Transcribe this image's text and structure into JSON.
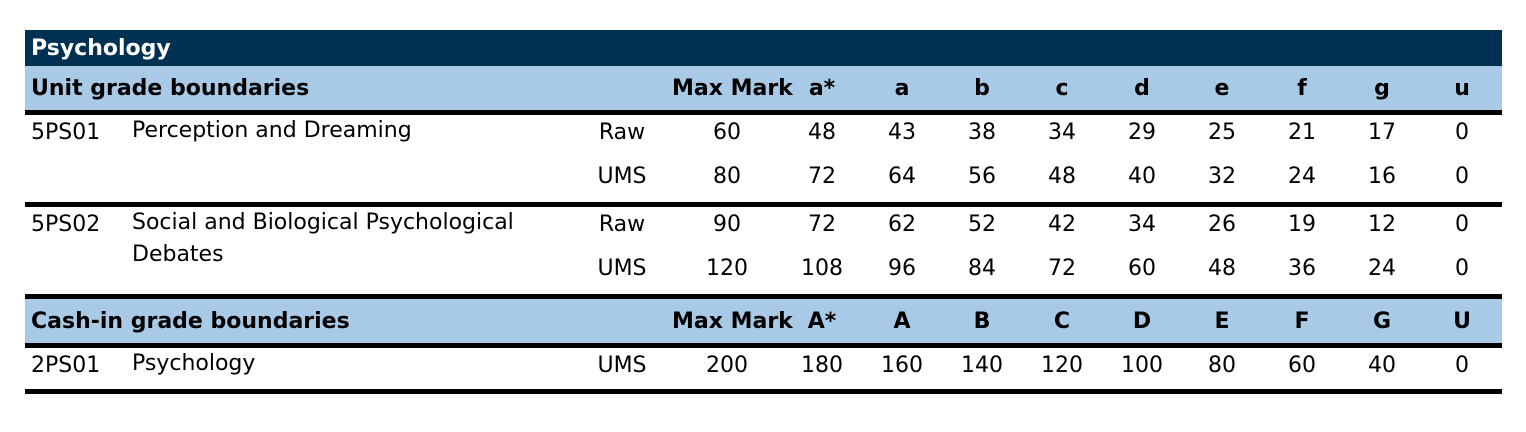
{
  "title": "Psychology",
  "unit_section": {
    "heading": "Unit grade boundaries",
    "columns": [
      "Max Mark",
      "a*",
      "a",
      "b",
      "c",
      "d",
      "e",
      "f",
      "g",
      "u"
    ],
    "units": [
      {
        "code": "5PS01",
        "name": "Perception and Dreaming",
        "rows": [
          {
            "scale": "Raw",
            "values": [
              60,
              48,
              43,
              38,
              34,
              29,
              25,
              21,
              17,
              0
            ]
          },
          {
            "scale": "UMS",
            "values": [
              80,
              72,
              64,
              56,
              48,
              40,
              32,
              24,
              16,
              0
            ]
          }
        ]
      },
      {
        "code": "5PS02",
        "name": "Social and Biological Psychological Debates",
        "rows": [
          {
            "scale": "Raw",
            "values": [
              90,
              72,
              62,
              52,
              42,
              34,
              26,
              19,
              12,
              0
            ]
          },
          {
            "scale": "UMS",
            "values": [
              120,
              108,
              96,
              84,
              72,
              60,
              48,
              36,
              24,
              0
            ]
          }
        ]
      }
    ]
  },
  "cashin_section": {
    "heading": "Cash-in grade boundaries",
    "columns": [
      "Max Mark",
      "A*",
      "A",
      "B",
      "C",
      "D",
      "E",
      "F",
      "G",
      "U"
    ],
    "units": [
      {
        "code": "2PS01",
        "name": "Psychology",
        "rows": [
          {
            "scale": "UMS",
            "values": [
              200,
              180,
              160,
              140,
              120,
              100,
              80,
              60,
              40,
              0
            ]
          }
        ]
      }
    ]
  }
}
